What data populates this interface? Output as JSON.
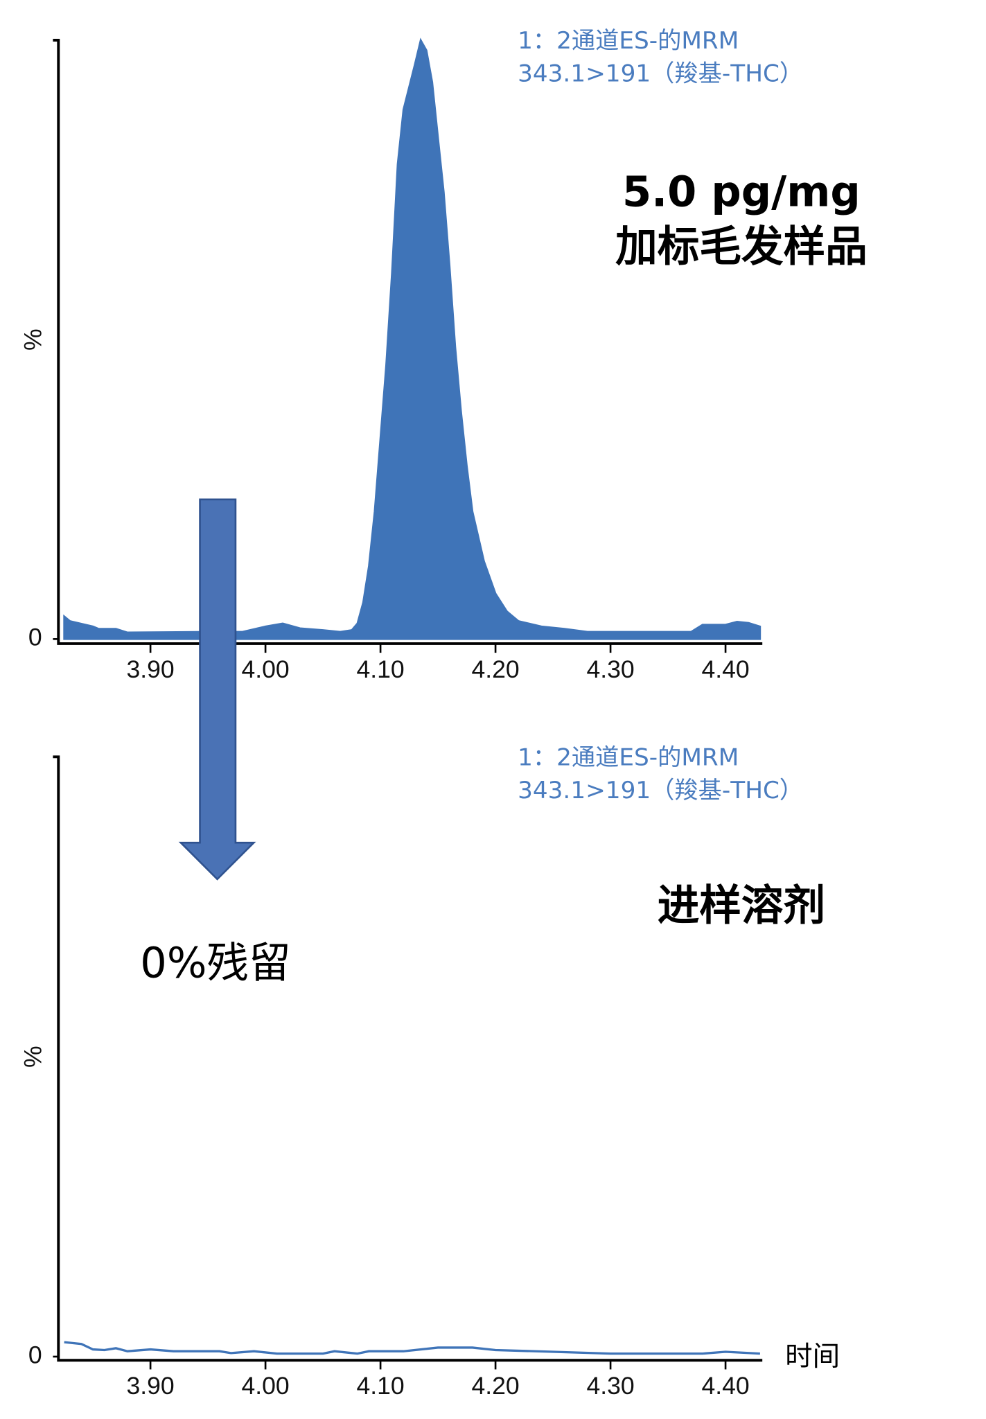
{
  "chart_data": [
    {
      "type": "area",
      "title": "1：2通道ES-的MRM",
      "subtitle": "343.1>191（羧基-THC）",
      "annotations": [
        "5.0 pg/mg",
        "加标毛发样品"
      ],
      "y_label": "%",
      "color": "#3f74b8",
      "x": [
        3.825,
        3.83,
        3.85,
        3.855,
        3.87,
        3.88,
        3.95,
        3.98,
        4.0,
        4.015,
        4.03,
        4.05,
        4.065,
        4.075,
        4.08,
        4.085,
        4.09,
        4.095,
        4.1,
        4.105,
        4.11,
        4.115,
        4.12,
        4.13,
        4.135,
        4.14,
        4.145,
        4.15,
        4.155,
        4.16,
        4.165,
        4.17,
        4.175,
        4.18,
        4.19,
        4.2,
        4.21,
        4.22,
        4.24,
        4.26,
        4.28,
        4.3,
        4.37,
        4.38,
        4.4,
        4.41,
        4.42,
        4.43
      ],
      "values": [
        3.8,
        3,
        2.1,
        1.7,
        1.7,
        1.1,
        1.2,
        1.2,
        2.1,
        2.6,
        1.8,
        1.5,
        1.2,
        1.5,
        2.6,
        6.1,
        12.2,
        21.3,
        33.5,
        45.7,
        61,
        79.3,
        88.4,
        96,
        100,
        98.3,
        93,
        83.8,
        74.7,
        62.5,
        48.8,
        38.1,
        29,
        21.3,
        13,
        7.6,
        4.6,
        3,
        2.1,
        1.7,
        1.2,
        1.2,
        1.2,
        2.4,
        2.4,
        2.9,
        2.7,
        2.1
      ],
      "xlim": [
        3.82,
        4.432
      ],
      "ylim": [
        0,
        100
      ],
      "xticks": [
        {
          "value": 3.9,
          "label": "3.90"
        },
        {
          "value": 4.0,
          "label": "4.00"
        },
        {
          "value": 4.1,
          "label": "4.10"
        },
        {
          "value": 4.2,
          "label": "4.20"
        },
        {
          "value": 4.3,
          "label": "4.30"
        },
        {
          "value": 4.4,
          "label": "4.40"
        }
      ],
      "yticks": [
        0
      ]
    },
    {
      "type": "line",
      "title": "1：2通道ES-的MRM",
      "subtitle": "343.1>191（羧基-THC）",
      "annotations": [
        "进样溶剂"
      ],
      "y_label": "%",
      "x_label": "时间",
      "color": "#3f74b8",
      "x": [
        3.825,
        3.84,
        3.85,
        3.86,
        3.87,
        3.88,
        3.9,
        3.92,
        3.96,
        3.97,
        3.99,
        4.01,
        4.05,
        4.06,
        4.08,
        4.09,
        4.12,
        4.15,
        4.18,
        4.2,
        4.25,
        4.3,
        4.35,
        4.38,
        4.4,
        4.43
      ],
      "values": [
        2.4,
        2.1,
        1.2,
        1.1,
        1.4,
        0.9,
        1.2,
        0.9,
        0.9,
        0.6,
        0.9,
        0.5,
        0.5,
        0.9,
        0.5,
        0.9,
        0.9,
        1.5,
        1.5,
        1.1,
        0.8,
        0.5,
        0.5,
        0.5,
        0.8,
        0.5
      ],
      "xlim": [
        3.82,
        4.432
      ],
      "ylim": [
        0,
        100
      ],
      "xticks": [
        {
          "value": 3.9,
          "label": "3.90"
        },
        {
          "value": 4.0,
          "label": "4.00"
        },
        {
          "value": 4.1,
          "label": "4.10"
        },
        {
          "value": 4.2,
          "label": "4.20"
        },
        {
          "value": 4.3,
          "label": "4.30"
        },
        {
          "value": 4.4,
          "label": "4.40"
        }
      ],
      "yticks": [
        0
      ]
    }
  ],
  "annotation": "0%残留"
}
